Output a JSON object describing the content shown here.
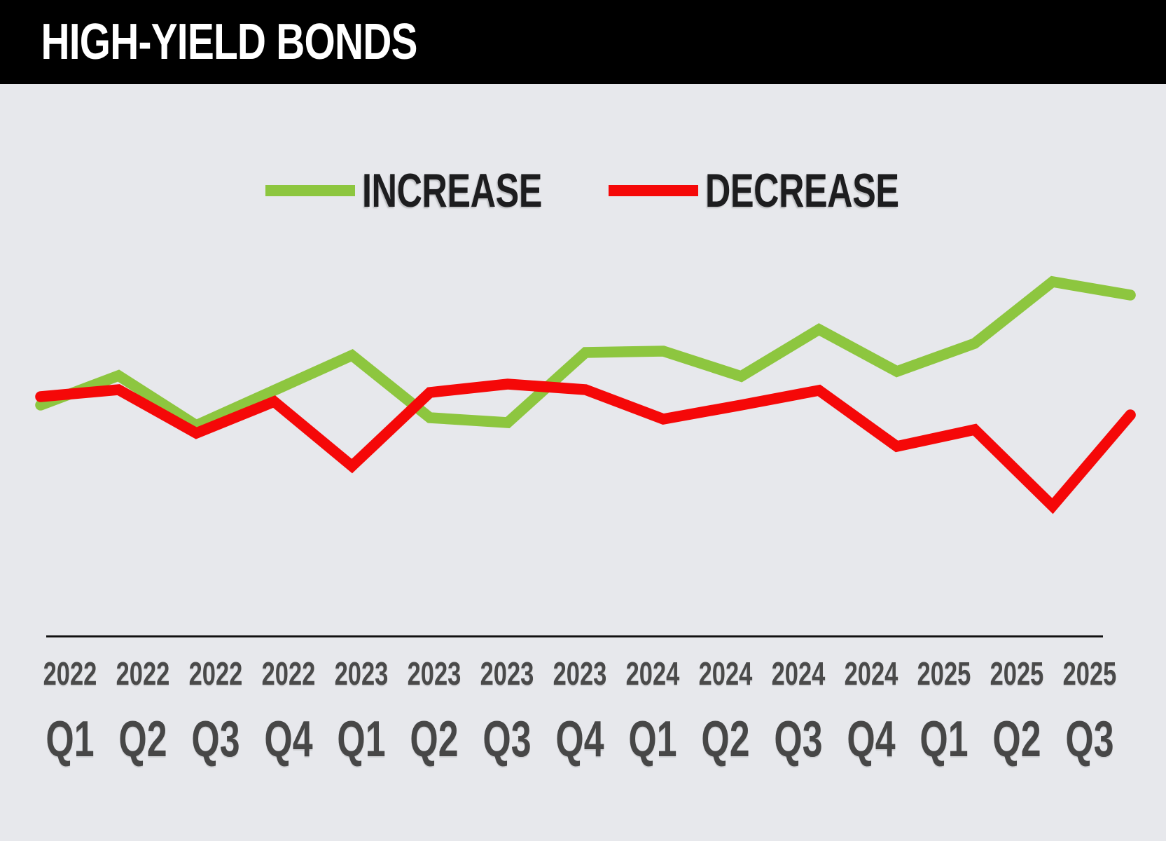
{
  "header": {
    "title": "HIGH-YIELD BONDS"
  },
  "legend": {
    "items": [
      {
        "label": "INCREASE",
        "color": "#8dc63f"
      },
      {
        "label": "DECREASE",
        "color": "#f50808"
      }
    ]
  },
  "chart_data": {
    "type": "line",
    "title": "HIGH-YIELD BONDS",
    "xlabel": "",
    "ylabel": "",
    "y_axis_visible": false,
    "grid": false,
    "legend_position": "top-center",
    "x_categories": [
      {
        "year": "2022",
        "quarter": "Q1"
      },
      {
        "year": "2022",
        "quarter": "Q2"
      },
      {
        "year": "2022",
        "quarter": "Q3"
      },
      {
        "year": "2022",
        "quarter": "Q4"
      },
      {
        "year": "2023",
        "quarter": "Q1"
      },
      {
        "year": "2023",
        "quarter": "Q2"
      },
      {
        "year": "2023",
        "quarter": "Q3"
      },
      {
        "year": "2023",
        "quarter": "Q4"
      },
      {
        "year": "2024",
        "quarter": "Q1"
      },
      {
        "year": "2024",
        "quarter": "Q2"
      },
      {
        "year": "2024",
        "quarter": "Q3"
      },
      {
        "year": "2024",
        "quarter": "Q4"
      },
      {
        "year": "2025",
        "quarter": "Q1"
      },
      {
        "year": "2025",
        "quarter": "Q2"
      },
      {
        "year": "2025",
        "quarter": "Q3"
      }
    ],
    "value_units": "relative index (no y-axis shown)",
    "ylim": [
      0,
      560
    ],
    "series": [
      {
        "name": "INCREASE",
        "color": "#8dc63f",
        "values": [
          330,
          372,
          301,
          351,
          401,
          312,
          305,
          405,
          407,
          371,
          438,
          378,
          418,
          506,
          487
        ]
      },
      {
        "name": "DECREASE",
        "color": "#f50808",
        "values": [
          342,
          352,
          290,
          335,
          243,
          348,
          360,
          352,
          310,
          330,
          351,
          271,
          295,
          186,
          316
        ]
      }
    ]
  },
  "colors": {
    "background": "#e7e8ec",
    "header_bg": "#000000",
    "title_text": "#ffffff",
    "axis_line": "#111111",
    "axis_label": "#4a4a4a",
    "legend_text": "#1d1d1f"
  }
}
